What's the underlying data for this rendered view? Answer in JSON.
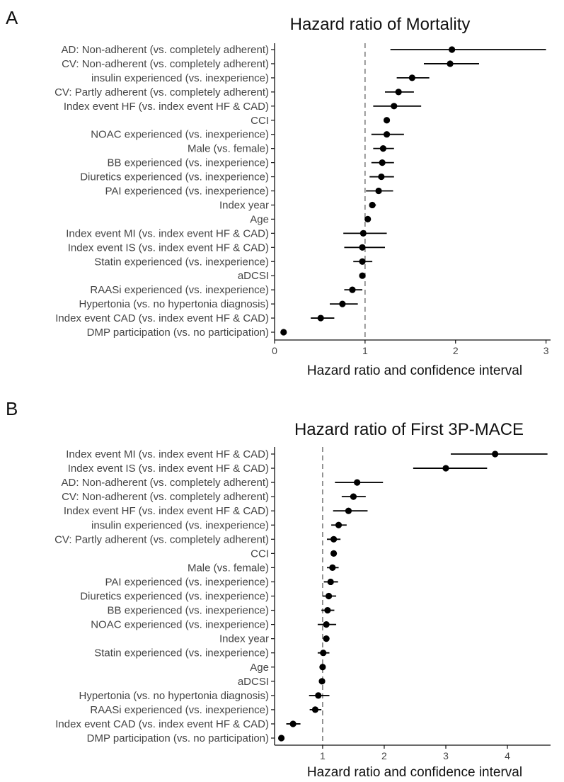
{
  "chart_data": [
    {
      "type": "forest",
      "panel": "A",
      "title": "Hazard ratio of Mortality",
      "xlabel": "Hazard ratio and confidence interval",
      "ylabel": "",
      "xlim": [
        0,
        3.05
      ],
      "xticks": [
        0,
        1,
        2,
        3
      ],
      "xtick_labels": [
        "0",
        "1",
        "2",
        "3"
      ],
      "reference_line": 1,
      "grid": false,
      "rows": [
        {
          "label": "AD: Non-adherent (vs. completely adherent)",
          "hr": 1.96,
          "lo": 1.28,
          "hi": 3.0
        },
        {
          "label": "CV: Non-adherent (vs. completely adherent)",
          "hr": 1.94,
          "lo": 1.65,
          "hi": 2.26
        },
        {
          "label": "insulin experienced (vs. inexperience)",
          "hr": 1.52,
          "lo": 1.35,
          "hi": 1.71
        },
        {
          "label": "CV: Partly adherent (vs. completely adherent)",
          "hr": 1.37,
          "lo": 1.22,
          "hi": 1.54
        },
        {
          "label": "Index event HF (vs. index event HF & CAD)",
          "hr": 1.32,
          "lo": 1.09,
          "hi": 1.62
        },
        {
          "label": "CCI",
          "hr": 1.24,
          "lo": 1.22,
          "hi": 1.26
        },
        {
          "label": "NOAC experienced (vs. inexperience)",
          "hr": 1.24,
          "lo": 1.07,
          "hi": 1.43
        },
        {
          "label": "Male (vs. female)",
          "hr": 1.2,
          "lo": 1.09,
          "hi": 1.32
        },
        {
          "label": "BB experienced (vs. inexperience)",
          "hr": 1.19,
          "lo": 1.07,
          "hi": 1.32
        },
        {
          "label": "Diuretics experienced (vs. inexperience)",
          "hr": 1.18,
          "lo": 1.05,
          "hi": 1.32
        },
        {
          "label": "PAI experienced (vs. inexperience)",
          "hr": 1.15,
          "lo": 1.01,
          "hi": 1.31
        },
        {
          "label": "Index year",
          "hr": 1.08,
          "lo": 1.05,
          "hi": 1.12
        },
        {
          "label": "Age",
          "hr": 1.03,
          "lo": 1.02,
          "hi": 1.04
        },
        {
          "label": "Index event MI (vs. index event HF & CAD)",
          "hr": 0.98,
          "lo": 0.76,
          "hi": 1.24
        },
        {
          "label": "Index event IS (vs. index event HF & CAD)",
          "hr": 0.97,
          "lo": 0.77,
          "hi": 1.22
        },
        {
          "label": "Statin experienced (vs. inexperience)",
          "hr": 0.97,
          "lo": 0.87,
          "hi": 1.08
        },
        {
          "label": "aDCSI",
          "hr": 0.97,
          "lo": 0.95,
          "hi": 0.99
        },
        {
          "label": "RAASi experienced (vs. inexperience)",
          "hr": 0.86,
          "lo": 0.77,
          "hi": 0.97
        },
        {
          "label": "Hypertonia (vs. no hypertonia diagnosis)",
          "hr": 0.75,
          "lo": 0.61,
          "hi": 0.92
        },
        {
          "label": "Index event CAD (vs. index event HF & CAD)",
          "hr": 0.51,
          "lo": 0.4,
          "hi": 0.66
        },
        {
          "label": "DMP participation (vs. no participation)",
          "hr": 0.1,
          "lo": 0.09,
          "hi": 0.11
        }
      ]
    },
    {
      "type": "forest",
      "panel": "B",
      "title": "Hazard ratio of First 3P-MACE",
      "xlabel": "Hazard ratio and confidence interval",
      "ylabel": "",
      "xlim": [
        0.22,
        4.7
      ],
      "xticks": [
        1,
        2,
        3,
        4
      ],
      "xtick_labels": [
        "1",
        "2",
        "3",
        "4"
      ],
      "reference_line": 1,
      "grid": false,
      "rows": [
        {
          "label": "Index event MI (vs. index event HF & CAD)",
          "hr": 3.8,
          "lo": 3.08,
          "hi": 4.65
        },
        {
          "label": "Index event IS (vs. index event HF & CAD)",
          "hr": 3.0,
          "lo": 2.47,
          "hi": 3.67
        },
        {
          "label": "AD: Non-adherent (vs. completely adherent)",
          "hr": 1.56,
          "lo": 1.2,
          "hi": 1.98
        },
        {
          "label": "CV: Non-adherent (vs. completely adherent)",
          "hr": 1.5,
          "lo": 1.31,
          "hi": 1.7
        },
        {
          "label": "Index event HF (vs. index event HF & CAD)",
          "hr": 1.42,
          "lo": 1.17,
          "hi": 1.73
        },
        {
          "label": "insulin experienced (vs. inexperience)",
          "hr": 1.26,
          "lo": 1.14,
          "hi": 1.39
        },
        {
          "label": "CV: Partly adherent (vs. completely adherent)",
          "hr": 1.18,
          "lo": 1.07,
          "hi": 1.29
        },
        {
          "label": "CCI",
          "hr": 1.18,
          "lo": 1.16,
          "hi": 1.2
        },
        {
          "label": "Male (vs. female)",
          "hr": 1.16,
          "lo": 1.07,
          "hi": 1.26
        },
        {
          "label": "PAI experienced (vs. inexperience)",
          "hr": 1.13,
          "lo": 1.02,
          "hi": 1.25
        },
        {
          "label": "Diuretics experienced (vs. inexperience)",
          "hr": 1.1,
          "lo": 1.0,
          "hi": 1.22
        },
        {
          "label": "BB experienced (vs. inexperience)",
          "hr": 1.08,
          "lo": 0.98,
          "hi": 1.19
        },
        {
          "label": "NOAC experienced (vs. inexperience)",
          "hr": 1.06,
          "lo": 0.92,
          "hi": 1.22
        },
        {
          "label": "Index year",
          "hr": 1.06,
          "lo": 1.03,
          "hi": 1.09
        },
        {
          "label": "Statin experienced (vs. inexperience)",
          "hr": 1.01,
          "lo": 0.92,
          "hi": 1.11
        },
        {
          "label": "Age",
          "hr": 1.0,
          "lo": 0.99,
          "hi": 1.01
        },
        {
          "label": "aDCSI",
          "hr": 0.99,
          "lo": 0.97,
          "hi": 1.01
        },
        {
          "label": "Hypertonia (vs. no hypertonia diagnosis)",
          "hr": 0.93,
          "lo": 0.78,
          "hi": 1.11
        },
        {
          "label": "RAASi experienced (vs. inexperience)",
          "hr": 0.88,
          "lo": 0.79,
          "hi": 0.98
        },
        {
          "label": "Index event CAD (vs. index event HF & CAD)",
          "hr": 0.52,
          "lo": 0.41,
          "hi": 0.64
        },
        {
          "label": "DMP participation (vs. no participation)",
          "hr": 0.33,
          "lo": 0.3,
          "hi": 0.36
        }
      ]
    }
  ]
}
